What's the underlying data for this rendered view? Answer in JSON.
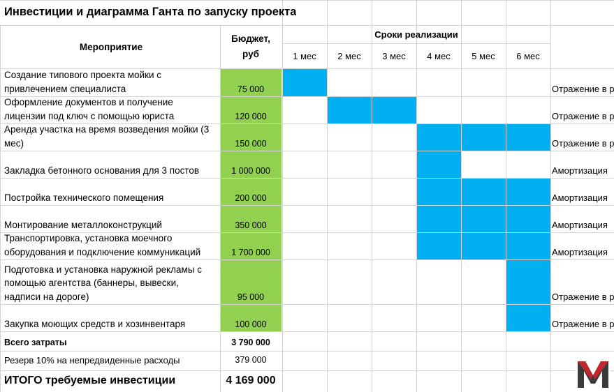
{
  "title": "Инвестиции и диаграмма Ганта по запуску проекта",
  "header": {
    "activity": "Мероприятие",
    "budget_line1": "Бюджет,",
    "budget_line2": "руб",
    "period": "Сроки реализации",
    "months": [
      "1 мес",
      "2 мес",
      "3 мес",
      "4 мес",
      "5 мес",
      "6 мес"
    ]
  },
  "rows": [
    {
      "lines": [
        "Создание типового проекта мойки с",
        "привлечением специалиста"
      ],
      "budget": "75 000",
      "note": "Отражение в р",
      "months_active": [
        1
      ]
    },
    {
      "lines": [
        "Оформление документов и получение",
        "лицензии под ключ с помощью юриста"
      ],
      "budget": "120 000",
      "note": "Отражение в р",
      "months_active": [
        2,
        3
      ]
    },
    {
      "lines": [
        "Аренда участка на время возведения мойки (3",
        "мес)"
      ],
      "budget": "150 000",
      "note": "Отражение в р",
      "months_active": [
        4,
        5,
        6
      ]
    },
    {
      "lines": [
        "Закладка бетонного основания для 3 постов"
      ],
      "budget": "1 000 000",
      "note": "Амортизация",
      "months_active": [
        4
      ]
    },
    {
      "lines": [
        "Постройка технического помещения"
      ],
      "budget": "200 000",
      "note": "Амортизация",
      "months_active": [
        4,
        5,
        6
      ]
    },
    {
      "lines": [
        "Монтирование металлоконструкций"
      ],
      "budget": "350 000",
      "note": "Амортизация",
      "months_active": [
        4,
        5,
        6
      ]
    },
    {
      "lines": [
        "Транспортировка, установка моечного",
        "оборудования и подключение коммуникаций"
      ],
      "budget": "1 700 000",
      "note": "Амортизация",
      "months_active": [
        4,
        5,
        6
      ]
    },
    {
      "lines": [
        "Подготовка и установка наружной рекламы с",
        "помощью агентства (баннеры, вывески,",
        "надписи на дороге)"
      ],
      "budget": "95 000",
      "note": "Отражение в р",
      "months_active": [
        6
      ]
    },
    {
      "lines": [
        "Закупка моющих средств и хозинвентаря"
      ],
      "budget": "100 000",
      "note": "Отражение в р",
      "months_active": [
        6
      ]
    }
  ],
  "totals": {
    "total_label": "Всего затраты",
    "total_value": "3 790 000",
    "reserve_label": "Резерв 10% на непредвиденные расходы",
    "reserve_value": "379 000",
    "grand_label": "ИТОГО требуемые инвестиции",
    "grand_value": "4 169 000"
  },
  "colors": {
    "budget_fill": "#92d050",
    "gantt_fill": "#00b0f0",
    "grid": "#d4d4d4",
    "logo_red": "#c0272d",
    "logo_dark": "#3a3a3a"
  },
  "logo": {
    "letter": "M",
    "icon": "logo-m-icon"
  }
}
